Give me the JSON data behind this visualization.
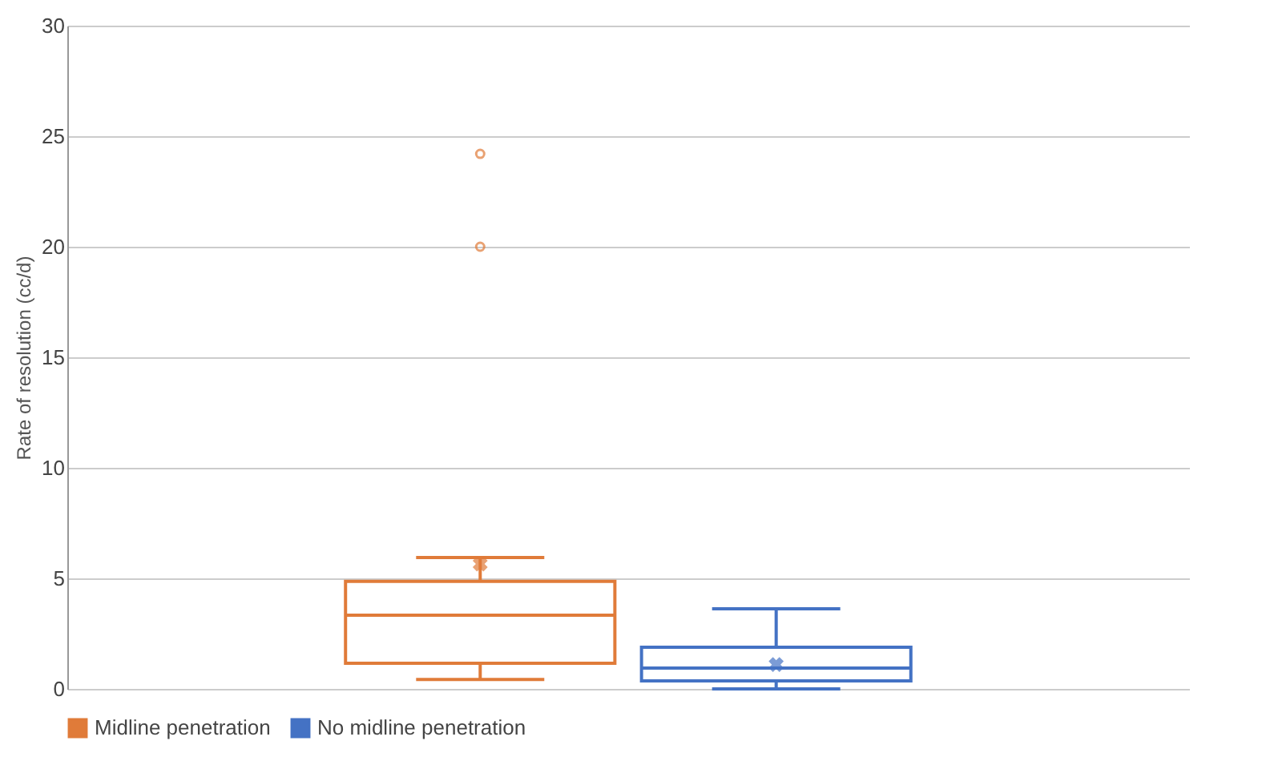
{
  "chart_data": {
    "type": "box",
    "ylabel": "Rate of resolution (cc/d)",
    "categories": [
      null
    ],
    "series": [
      {
        "name": "Midline penetration",
        "color": "#e07b39",
        "boxes": [
          {
            "low": 0.43,
            "q1": 1.16,
            "median": 3.33,
            "q3": 4.86,
            "high": 5.94,
            "mean": 5.65,
            "outliers": [
              20.0,
              24.2
            ]
          }
        ]
      },
      {
        "name": "No midline penetration",
        "color": "#4472c4",
        "boxes": [
          {
            "low": 0.0,
            "q1": 0.36,
            "median": 0.94,
            "q3": 1.88,
            "high": 3.62,
            "mean": 1.1
          }
        ]
      }
    ],
    "ylim": [
      0,
      30
    ],
    "yticks": [
      0,
      5,
      10,
      15,
      20,
      25,
      30
    ],
    "grid": "y",
    "legend": "bottom",
    "tick_labels": "y"
  }
}
